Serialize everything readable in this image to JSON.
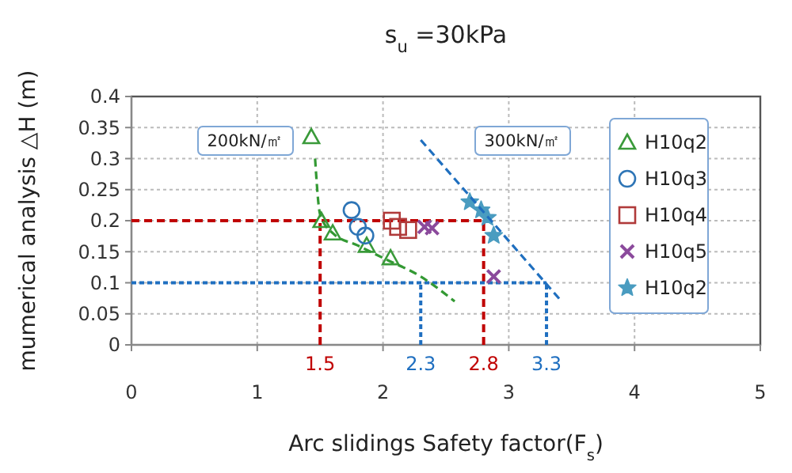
{
  "chart_data": {
    "type": "scatter",
    "title": "s$_{u}$ =30kPa",
    "xlabel": "Arc slidings Safety factor(F$_{s}$)",
    "ylabel": "mumerical analysis △H (m)",
    "xlim": [
      0,
      5
    ],
    "xticks": [
      0,
      1,
      2,
      3,
      4,
      5
    ],
    "ylim": [
      0,
      0.4
    ],
    "yticks": [
      0,
      0.05,
      0.1,
      0.15,
      0.2,
      0.25,
      0.3,
      0.35,
      0.4
    ],
    "grid": true,
    "legend": "right",
    "series": [
      {
        "name": "H10q2",
        "color": "#3a9a3a",
        "marker": "triangle",
        "x": [
          1.43,
          1.51,
          1.6,
          1.87,
          2.06
        ],
        "values": [
          0.335,
          0.2,
          0.18,
          0.16,
          0.14
        ]
      },
      {
        "name": "H10q3",
        "color": "#2e75b6",
        "marker": "circle",
        "x": [
          1.75,
          1.8,
          1.86
        ],
        "values": [
          0.217,
          0.19,
          0.176
        ]
      },
      {
        "name": "H10q4",
        "color": "#b03a3a",
        "marker": "square",
        "x": [
          2.07,
          2.12,
          2.2
        ],
        "values": [
          0.2,
          0.19,
          0.185
        ]
      },
      {
        "name": "H10q5",
        "color": "#8b4a9c",
        "marker": "cross",
        "x": [
          2.33,
          2.39,
          2.88
        ],
        "values": [
          0.19,
          0.188,
          0.11
        ]
      },
      {
        "name": "H10q2",
        "color": "#4a9cc0",
        "marker": "star",
        "x": [
          2.69,
          2.78,
          2.83,
          2.88
        ],
        "values": [
          0.23,
          0.217,
          0.205,
          0.176
        ]
      },
      {
        "type": "line",
        "color": "#339933",
        "line_style": "dashed",
        "x": [
          1.46,
          1.5,
          1.6,
          1.8,
          2.0,
          2.3,
          2.57
        ],
        "values": [
          0.3,
          0.21,
          0.18,
          0.16,
          0.14,
          0.11,
          0.07
        ]
      },
      {
        "type": "line",
        "color": "#1f6fbf",
        "line_style": "dashed",
        "x": [
          2.3,
          3.42
        ],
        "values": [
          0.33,
          0.07
        ]
      }
    ],
    "ref_lines": [
      {
        "axis": "y",
        "value": 0.2,
        "color": "#c00000",
        "line_style": "dashed"
      },
      {
        "axis": "x",
        "value": 1.5,
        "label": "1.5",
        "color": "#c00000",
        "line_style": "dashed"
      },
      {
        "axis": "x",
        "value": 2.8,
        "label": "2.8",
        "color": "#c00000",
        "line_style": "dashed"
      },
      {
        "axis": "y",
        "value": 0.1,
        "color": "#1f6fc0",
        "line_style": "dotted"
      },
      {
        "axis": "x",
        "value": 2.3,
        "label": "2.3",
        "color": "#1f6fc0",
        "line_style": "dotted"
      },
      {
        "axis": "x",
        "value": 3.3,
        "label": "3.3",
        "color": "#1f6fc0",
        "line_style": "dotted"
      }
    ],
    "annotations": [
      "200kN/㎡",
      "300kN/㎡"
    ]
  }
}
